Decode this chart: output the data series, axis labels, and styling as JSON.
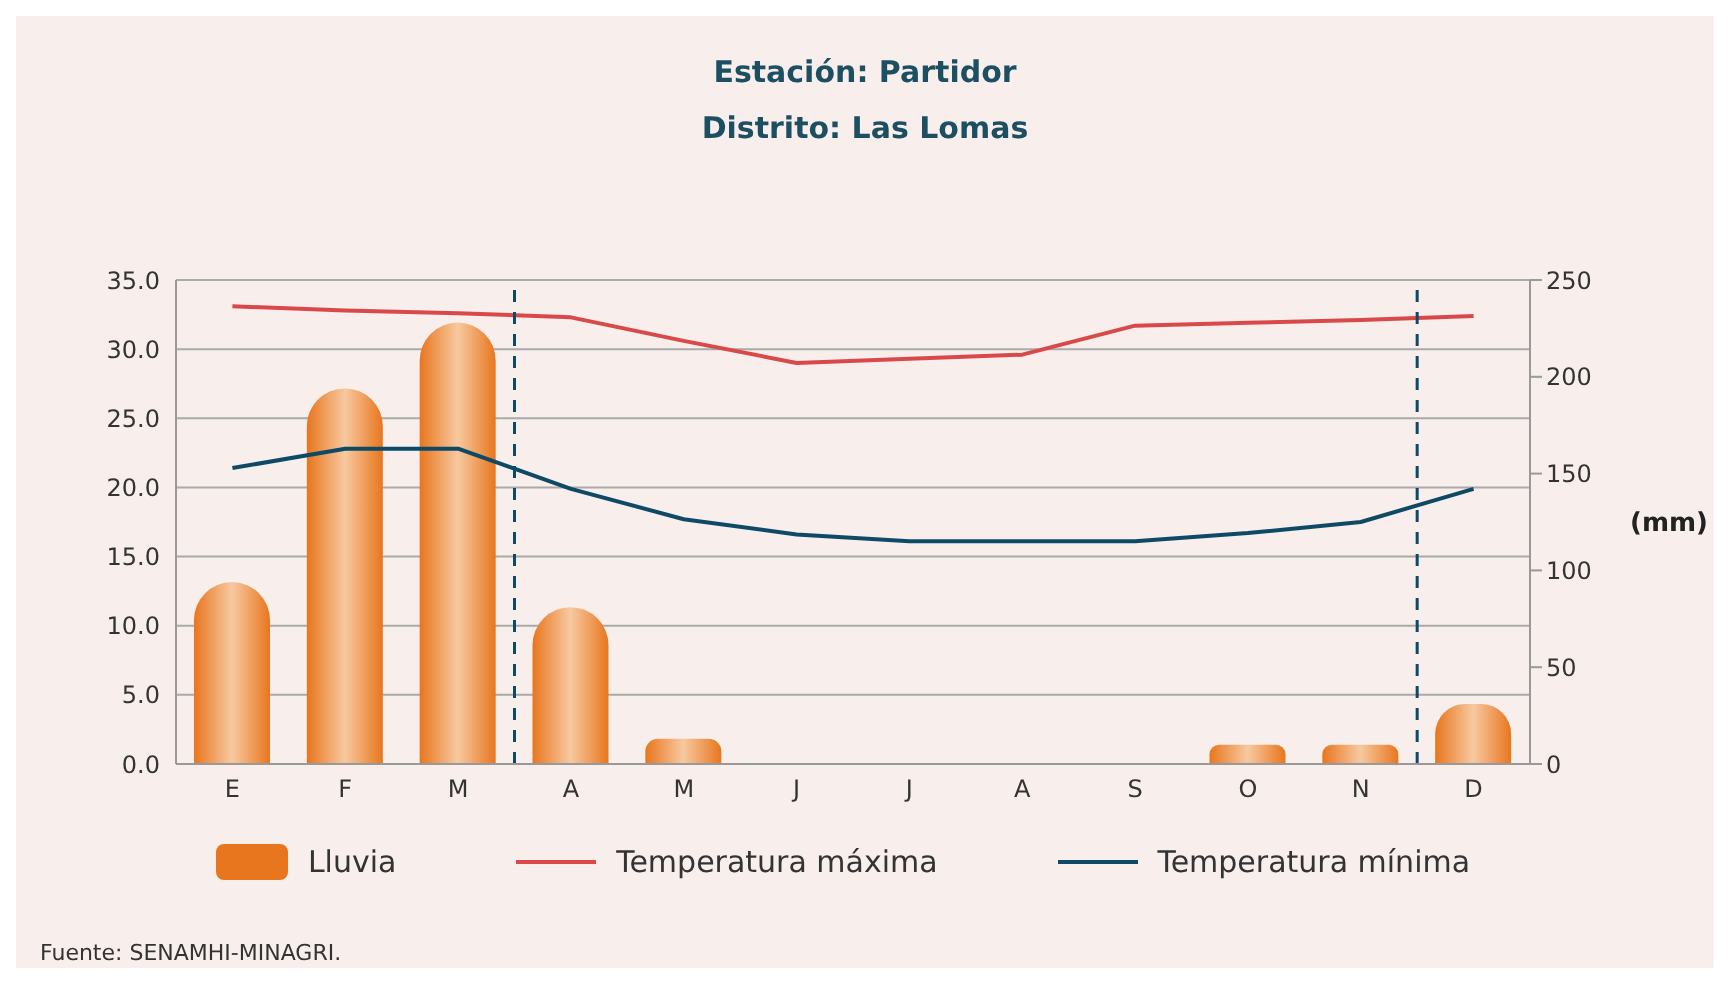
{
  "chart_data": {
    "type": "bar",
    "title": "Estación: Partidor",
    "subtitle": "Distrito: Las Lomas",
    "y2label": "(mm)",
    "annotations": [
      "Fuente: SENAMHI-MINAGRI."
    ],
    "categories": [
      "E",
      "F",
      "M",
      "A",
      "M",
      "J",
      "J",
      "A",
      "S",
      "O",
      "N",
      "D"
    ],
    "series": [
      {
        "name": "Lluvia",
        "axis": "y2",
        "color": "#e8761e",
        "values": [
          94,
          194,
          228,
          81,
          13,
          0,
          0,
          0,
          0,
          10,
          10,
          31
        ]
      },
      {
        "name": "Temperatura máxima",
        "type": "line",
        "axis": "y",
        "color": "#d9494a",
        "values": [
          33.1,
          32.8,
          32.6,
          32.3,
          30.6,
          29.0,
          29.3,
          29.6,
          31.7,
          31.9,
          32.1,
          32.4
        ]
      },
      {
        "name": "Temperatura mínima",
        "type": "line",
        "axis": "y",
        "color": "#0e4a66",
        "values": [
          21.4,
          22.8,
          22.8,
          19.9,
          17.7,
          16.6,
          16.1,
          16.1,
          16.1,
          16.7,
          17.5,
          19.9
        ]
      }
    ],
    "ylim": [
      0,
      35
    ],
    "yticks": [
      {
        "value": 0,
        "label": "0.0"
      },
      {
        "value": 5,
        "label": "5.0"
      },
      {
        "value": 10,
        "label": "10.0"
      },
      {
        "value": 15,
        "label": "15.0"
      },
      {
        "value": 20,
        "label": "20.0"
      },
      {
        "value": 25,
        "label": "25.0"
      },
      {
        "value": 30,
        "label": "30.0"
      },
      {
        "value": 35,
        "label": "35.0"
      }
    ],
    "y2lim": [
      0,
      250
    ],
    "y2ticks": [
      0,
      50,
      100,
      150,
      200,
      250
    ],
    "grid": "y",
    "legend": "bottom",
    "marker": "none",
    "line_style": "solid"
  }
}
